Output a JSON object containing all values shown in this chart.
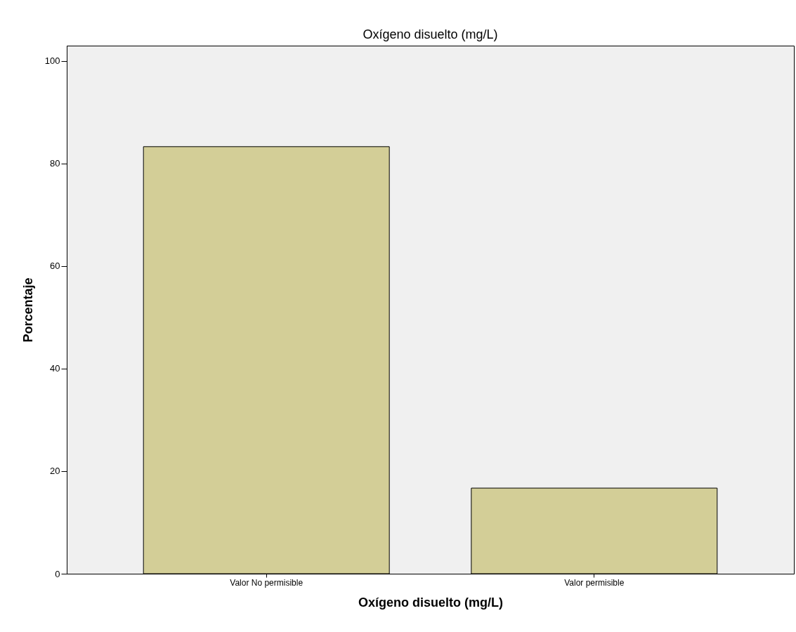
{
  "chart_data": {
    "type": "bar",
    "title": "Oxígeno disuelto (mg/L)",
    "xlabel": "Oxígeno disuelto (mg/L)",
    "ylabel": "Porcentaje",
    "categories": [
      "Valor No permisible",
      "Valor permisible"
    ],
    "values": [
      83.3,
      16.7
    ],
    "color": "#d3ce97",
    "ylim": [
      0,
      103
    ],
    "yticks": [
      0,
      20,
      40,
      60,
      80,
      100
    ],
    "grid": false
  }
}
